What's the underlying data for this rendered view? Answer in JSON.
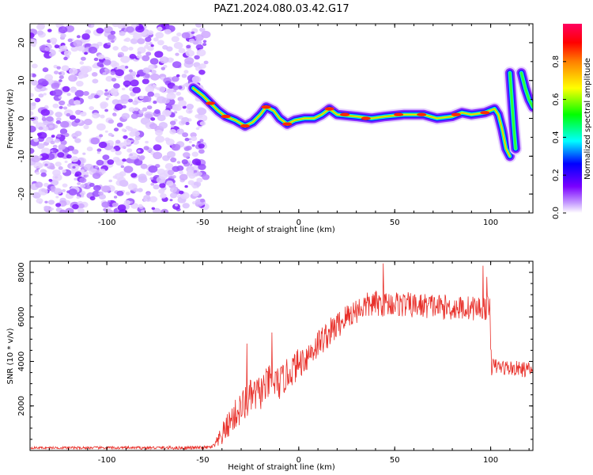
{
  "chart_data": [
    {
      "type": "heatmap",
      "title": "PAZ1.2024.080.03.42.G17",
      "xlabel": "Height of straight line (km)",
      "ylabel": "Frequency (Hz)",
      "xlim": [
        -140,
        122
      ],
      "ylim": [
        -25,
        25
      ],
      "xticks": [
        -100,
        -50,
        0,
        50,
        100
      ],
      "yticks": [
        -20,
        -10,
        0,
        10,
        20
      ],
      "noise_region": [
        -140,
        -48
      ],
      "ridge": [
        {
          "x": -55,
          "y": 8
        },
        {
          "x": -50,
          "y": 6
        },
        {
          "x": -46,
          "y": 4
        },
        {
          "x": -42,
          "y": 2
        },
        {
          "x": -38,
          "y": 0.5
        },
        {
          "x": -33,
          "y": -0.5
        },
        {
          "x": -28,
          "y": -2
        },
        {
          "x": -24,
          "y": -1
        },
        {
          "x": -20,
          "y": 1
        },
        {
          "x": -17,
          "y": 3
        },
        {
          "x": -13,
          "y": 2
        },
        {
          "x": -10,
          "y": 0
        },
        {
          "x": -6,
          "y": -1.5
        },
        {
          "x": -2,
          "y": -0.5
        },
        {
          "x": 3,
          "y": 0
        },
        {
          "x": 8,
          "y": 0
        },
        {
          "x": 12,
          "y": 1
        },
        {
          "x": 16,
          "y": 2.5
        },
        {
          "x": 20,
          "y": 1
        },
        {
          "x": 30,
          "y": 0.5
        },
        {
          "x": 38,
          "y": 0
        },
        {
          "x": 45,
          "y": 0.5
        },
        {
          "x": 55,
          "y": 1
        },
        {
          "x": 65,
          "y": 1
        },
        {
          "x": 72,
          "y": 0
        },
        {
          "x": 80,
          "y": 0.5
        },
        {
          "x": 85,
          "y": 1.5
        },
        {
          "x": 90,
          "y": 1
        },
        {
          "x": 97,
          "y": 1.5
        },
        {
          "x": 102,
          "y": 2.5
        },
        {
          "x": 104,
          "y": 1
        },
        {
          "x": 106,
          "y": -3
        },
        {
          "x": 108,
          "y": -8
        },
        {
          "x": 110,
          "y": -10
        }
      ],
      "ridge_secondary": [
        {
          "x": 110,
          "y": 12
        },
        {
          "x": 111,
          "y": 5
        },
        {
          "x": 112,
          "y": -2
        },
        {
          "x": 113,
          "y": -8
        }
      ],
      "ridge_tertiary": [
        {
          "x": 116,
          "y": 12
        },
        {
          "x": 118,
          "y": 8
        },
        {
          "x": 120,
          "y": 5
        },
        {
          "x": 122,
          "y": 3
        }
      ],
      "colorbar": {
        "label": "Normalized spectral amplitude",
        "range": [
          0,
          1
        ],
        "ticks": [
          "0.0",
          "0.2",
          "0.4",
          "0.6",
          "0.8"
        ],
        "tick_values": [
          0,
          0.2,
          0.4,
          0.6,
          0.8
        ]
      }
    },
    {
      "type": "line",
      "title": "",
      "xlabel": "Height of straight line (km)",
      "ylabel": "SNR (10 * v/v)",
      "xlim": [
        -140,
        122
      ],
      "ylim": [
        0,
        8500
      ],
      "xticks": [
        -100,
        -50,
        0,
        50,
        100
      ],
      "yticks": [
        2000,
        4000,
        6000,
        8000
      ],
      "series": [
        {
          "color": "#e8302a",
          "envelope": [
            {
              "x": -140,
              "y": 120
            },
            {
              "x": -50,
              "y": 120
            },
            {
              "x": -45,
              "y": 150
            },
            {
              "x": -42,
              "y": 400
            },
            {
              "x": -35,
              "y": 1400
            },
            {
              "x": -30,
              "y": 1900
            },
            {
              "x": -25,
              "y": 2400
            },
            {
              "x": -20,
              "y": 2600
            },
            {
              "x": -15,
              "y": 3100
            },
            {
              "x": -10,
              "y": 3000
            },
            {
              "x": -5,
              "y": 3500
            },
            {
              "x": 0,
              "y": 3900
            },
            {
              "x": 5,
              "y": 4300
            },
            {
              "x": 10,
              "y": 4800
            },
            {
              "x": 15,
              "y": 5200
            },
            {
              "x": 20,
              "y": 5600
            },
            {
              "x": 25,
              "y": 6000
            },
            {
              "x": 30,
              "y": 6300
            },
            {
              "x": 35,
              "y": 6500
            },
            {
              "x": 40,
              "y": 6600
            },
            {
              "x": 50,
              "y": 6600
            },
            {
              "x": 60,
              "y": 6500
            },
            {
              "x": 70,
              "y": 6500
            },
            {
              "x": 80,
              "y": 6400
            },
            {
              "x": 90,
              "y": 6400
            },
            {
              "x": 99.5,
              "y": 6400
            },
            {
              "x": 100.5,
              "y": 3800
            },
            {
              "x": 110,
              "y": 3700
            },
            {
              "x": 122,
              "y": 3600
            }
          ],
          "noise": [
            {
              "x": -140,
              "y": 50
            },
            {
              "x": -45,
              "y": 80
            },
            {
              "x": -40,
              "y": 500
            },
            {
              "x": -30,
              "y": 800
            },
            {
              "x": -20,
              "y": 800
            },
            {
              "x": 0,
              "y": 700
            },
            {
              "x": 30,
              "y": 600
            },
            {
              "x": 100,
              "y": 550
            },
            {
              "x": 101,
              "y": 350
            },
            {
              "x": 122,
              "y": 350
            }
          ],
          "spikes": [
            {
              "x": -27,
              "y": 4800
            },
            {
              "x": -14,
              "y": 5300
            },
            {
              "x": 44,
              "y": 8400
            },
            {
              "x": 96,
              "y": 8300
            },
            {
              "x": 98,
              "y": 7800
            }
          ]
        }
      ]
    }
  ]
}
